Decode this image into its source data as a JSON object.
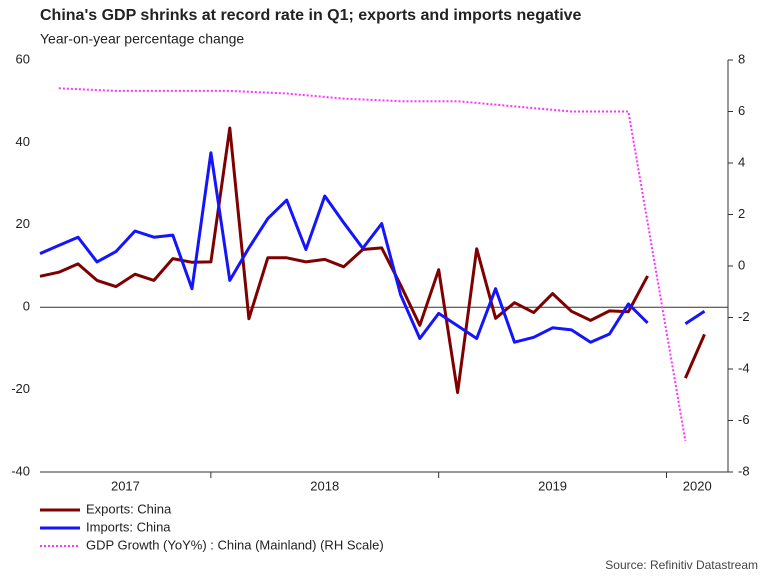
{
  "chart_data": {
    "type": "line",
    "title": "China's GDP shrinks at record rate in Q1;  exports and imports negative",
    "subtitle": "Year-on-year percentage change",
    "source": "Source: Refinitiv Datastream",
    "xlim": [
      2017.25,
      2020.27
    ],
    "xticks": [
      2018,
      2019,
      2020
    ],
    "year_labels": [
      "2017",
      "2018",
      "2019",
      "2020"
    ],
    "ylim": [
      -40,
      60
    ],
    "yticks": [
      -40,
      -20,
      0,
      20,
      40,
      60
    ],
    "y2lim": [
      -8,
      8
    ],
    "y2ticks": [
      -8,
      -6,
      -4,
      -2,
      0,
      2,
      4,
      6,
      8
    ],
    "grid": false,
    "series": [
      {
        "name": "Exports: China",
        "color": "#7f0000",
        "style": "solid",
        "x": [
          2017.25,
          2017.333,
          2017.417,
          2017.5,
          2017.583,
          2017.667,
          2017.75,
          2017.833,
          2017.917,
          2018,
          2018.083,
          2018.167,
          2018.25,
          2018.333,
          2018.417,
          2018.5,
          2018.583,
          2018.667,
          2018.75,
          2018.833,
          2018.917,
          2019,
          2019.083,
          2019.167,
          2019.25,
          2019.333,
          2019.417,
          2019.5,
          2019.583,
          2019.667,
          2019.75,
          2019.833,
          2019.917,
          2020,
          2020.083,
          2020.167
        ],
        "values": [
          7.5,
          8.5,
          10.5,
          6.5,
          5,
          8,
          6.5,
          11.8,
          10.9,
          11,
          43.5,
          -2.8,
          12,
          12,
          11,
          11.6,
          9.8,
          14,
          14.4,
          5.4,
          -4.4,
          9.1,
          -20.7,
          14.2,
          -2.7,
          1.1,
          -1.3,
          3.3,
          -1,
          -3.2,
          -0.9,
          -1.1,
          7.6,
          null,
          -17.2,
          -6.6
        ]
      },
      {
        "name": "Imports: China",
        "color": "#1414ff",
        "style": "solid",
        "x": [
          2017.25,
          2017.333,
          2017.417,
          2017.5,
          2017.583,
          2017.667,
          2017.75,
          2017.833,
          2017.917,
          2018,
          2018.083,
          2018.167,
          2018.25,
          2018.333,
          2018.417,
          2018.5,
          2018.583,
          2018.667,
          2018.75,
          2018.833,
          2018.917,
          2019,
          2019.083,
          2019.167,
          2019.25,
          2019.333,
          2019.417,
          2019.5,
          2019.583,
          2019.667,
          2019.75,
          2019.833,
          2019.917,
          2020,
          2020.083,
          2020.167
        ],
        "values": [
          13,
          15,
          17,
          11,
          13.5,
          18.5,
          17,
          17.5,
          4.5,
          37.5,
          6.5,
          14.4,
          21.5,
          26,
          14,
          27,
          20.5,
          14.3,
          20.3,
          3,
          -7.6,
          -1.5,
          -4.5,
          -7.6,
          4.5,
          -8.5,
          -7.3,
          -5,
          -5.5,
          -8.5,
          -6.5,
          0.8,
          -3.8,
          null,
          -4,
          -1
        ]
      },
      {
        "name": "GDP Growth (YoY%) : China (Mainland) (RH Scale)",
        "color": "#ff33ff",
        "style": "dotted",
        "axis": "y2",
        "x": [
          2017.333,
          2017.583,
          2017.833,
          2018.083,
          2018.333,
          2018.583,
          2018.833,
          2019.083,
          2019.333,
          2019.583,
          2019.833,
          2020.083
        ],
        "values": [
          6.9,
          6.8,
          6.8,
          6.8,
          6.7,
          6.5,
          6.4,
          6.4,
          6.2,
          6.0,
          6.0,
          -6.8
        ]
      }
    ]
  }
}
